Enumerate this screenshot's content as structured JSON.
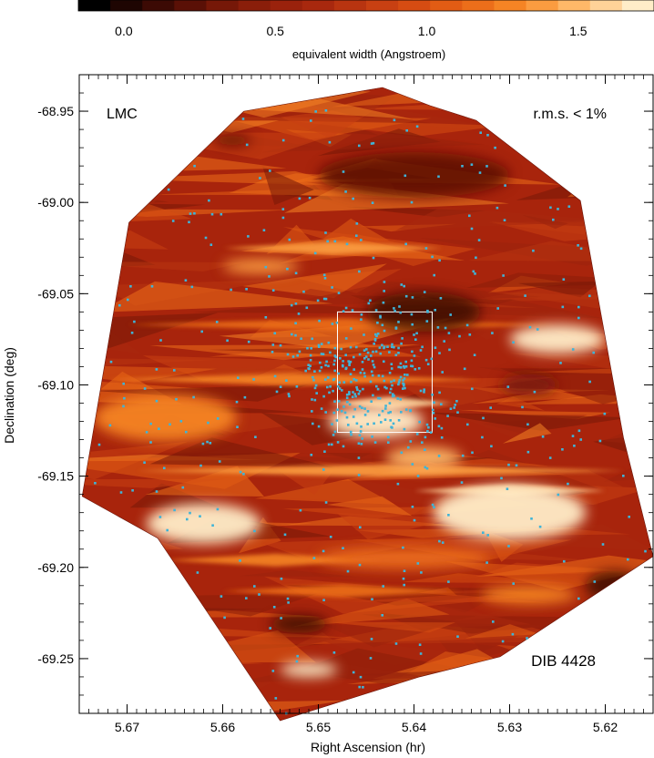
{
  "chart_data": {
    "type": "heatmap",
    "colorbar": {
      "label": "equivalent width (Angstroem)",
      "ticks": [
        0.0,
        0.5,
        1.0,
        1.5
      ],
      "tick_labels": [
        "0.0",
        "0.5",
        "1.0",
        "1.5"
      ],
      "range": [
        -0.15,
        1.75
      ],
      "colors": [
        "#000000",
        "#1e0502",
        "#3c0a04",
        "#5a1006",
        "#761808",
        "#8a1e0a",
        "#9a220c",
        "#a8280e",
        "#b83410",
        "#c84012",
        "#d64c12",
        "#e25c14",
        "#ec6e1a",
        "#f58424",
        "#fb9c40",
        "#ffb868",
        "#ffd298",
        "#ffedc8"
      ]
    },
    "xlabel": "Right Ascension (hr)",
    "ylabel": "Declination (deg)",
    "xlim": [
      5.675,
      5.615
    ],
    "ylim": [
      -69.28,
      -68.93
    ],
    "xticks": [
      5.67,
      5.66,
      5.65,
      5.64,
      5.63,
      5.62
    ],
    "xtick_labels": [
      "5.67",
      "5.66",
      "5.65",
      "5.64",
      "5.63",
      "5.62"
    ],
    "yticks": [
      -68.95,
      -69.0,
      -69.05,
      -69.1,
      -69.15,
      -69.2,
      -69.25
    ],
    "ytick_labels": [
      "-68.95",
      "-69.00",
      "-69.05",
      "-69.10",
      "-69.15",
      "-69.20",
      "-69.25"
    ],
    "annotations": {
      "top_left": "LMC",
      "top_right": "r.m.s. < 1%",
      "bottom_right": "DIB 4428"
    },
    "coverage_hull": [
      [
        5.6433,
        -68.937
      ],
      [
        5.6578,
        -68.95
      ],
      [
        5.6698,
        -69.011
      ],
      [
        5.6747,
        -69.161
      ],
      [
        5.6668,
        -69.184
      ],
      [
        5.654,
        -69.284
      ],
      [
        5.6394,
        -69.26
      ],
      [
        5.631,
        -69.249
      ],
      [
        5.615,
        -69.194
      ],
      [
        5.6181,
        -69.129
      ],
      [
        5.6226,
        -68.999
      ],
      [
        5.6335,
        -68.955
      ],
      [
        5.6383,
        -68.947
      ]
    ],
    "highlight_box": {
      "ra": [
        5.648,
        5.6381
      ],
      "dec": [
        -69.06,
        -69.126
      ]
    },
    "emission_regions": [
      {
        "ra": 5.662,
        "dec": -69.176,
        "width": 0.012,
        "height": 0.022,
        "value": 1.72
      },
      {
        "ra": 5.63,
        "dec": -69.17,
        "width": 0.016,
        "height": 0.03,
        "value": 1.65
      },
      {
        "ra": 5.625,
        "dec": -69.075,
        "width": 0.01,
        "height": 0.016,
        "value": 1.72
      },
      {
        "ra": 5.644,
        "dec": -69.12,
        "width": 0.01,
        "height": 0.018,
        "value": 1.7
      },
      {
        "ra": 5.666,
        "dec": -69.118,
        "width": 0.015,
        "height": 0.026,
        "value": 1.25
      },
      {
        "ra": 5.639,
        "dec": -69.14,
        "width": 0.008,
        "height": 0.012,
        "value": 1.45
      },
      {
        "ra": 5.651,
        "dec": -69.256,
        "width": 0.006,
        "height": 0.008,
        "value": 1.7
      },
      {
        "ra": 5.641,
        "dec": -69.195,
        "width": 0.018,
        "height": 0.012,
        "value": 1.15
      },
      {
        "ra": 5.656,
        "dec": -69.035,
        "width": 0.008,
        "height": 0.008,
        "value": 1.4
      },
      {
        "ra": 5.628,
        "dec": -69.215,
        "width": 0.01,
        "height": 0.01,
        "value": 1.3
      }
    ],
    "absorption_regions": [
      {
        "ra": 5.639,
        "dec": -69.06,
        "width": 0.012,
        "height": 0.022,
        "value": 0.1
      },
      {
        "ra": 5.64,
        "dec": -68.985,
        "width": 0.02,
        "height": 0.025,
        "value": 0.25
      },
      {
        "ra": 5.652,
        "dec": -69.231,
        "width": 0.006,
        "height": 0.01,
        "value": 0.1
      },
      {
        "ra": 5.619,
        "dec": -69.21,
        "width": 0.006,
        "height": 0.016,
        "value": 0.1
      },
      {
        "ra": 5.659,
        "dec": -68.966,
        "width": 0.004,
        "height": 0.006,
        "value": 0.2
      },
      {
        "ra": 5.628,
        "dec": -69.1,
        "width": 0.006,
        "height": 0.012,
        "value": 0.35
      }
    ],
    "streaks": [
      {
        "dec": -69.025,
        "ra": [
          5.66,
          5.637
        ],
        "value": 1.35
      },
      {
        "dec": -69.067,
        "ra": [
          5.67,
          5.625
        ],
        "value": 1.15
      },
      {
        "dec": -69.097,
        "ra": [
          5.672,
          5.633
        ],
        "value": 1.3
      },
      {
        "dec": -69.11,
        "ra": [
          5.649,
          5.636
        ],
        "value": 1.6
      },
      {
        "dec": -69.147,
        "ra": [
          5.669,
          5.618
        ],
        "value": 1.4
      },
      {
        "dec": -69.158,
        "ra": [
          5.64,
          5.62
        ],
        "value": 1.6
      },
      {
        "dec": -69.196,
        "ra": [
          5.666,
          5.643
        ],
        "value": 1.3
      },
      {
        "dec": -69.213,
        "ra": [
          5.66,
          5.635
        ],
        "value": 1.2
      }
    ],
    "cluster_center": {
      "ra": 5.644,
      "dec": -69.095
    },
    "stars": {
      "count": 650,
      "cluster_fraction": 0.5,
      "cluster_sigma": {
        "ra": 0.0045,
        "dec": 0.022
      },
      "color": "#3fb4d8"
    }
  }
}
